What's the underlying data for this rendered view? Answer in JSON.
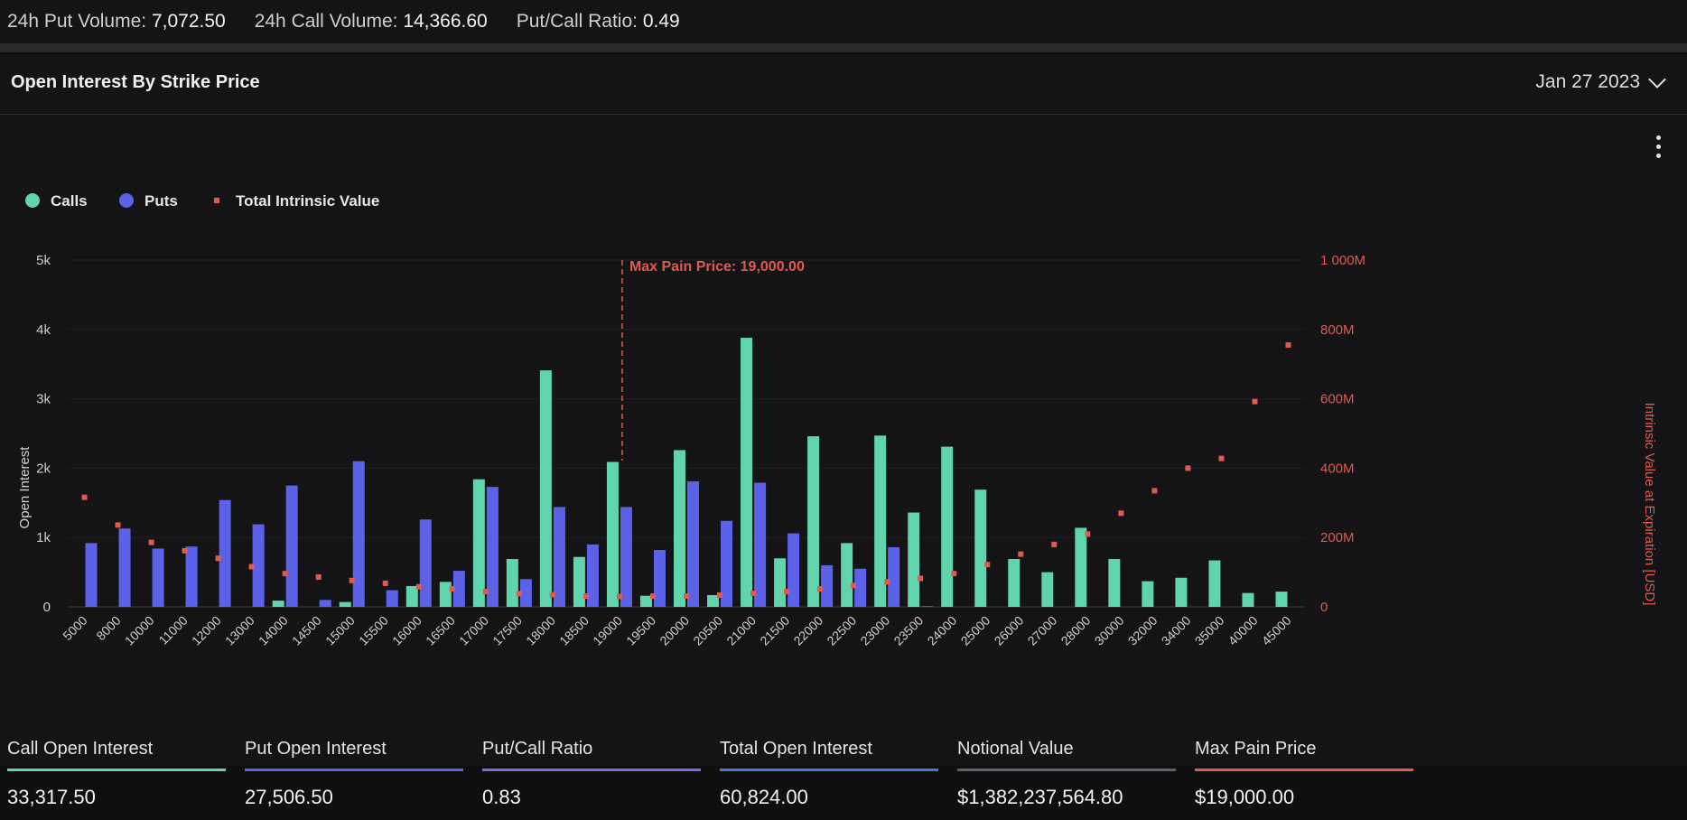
{
  "topbar": {
    "put_volume_label": "24h Put Volume:",
    "put_volume": "7,072.50",
    "call_volume_label": "24h Call Volume:",
    "call_volume": "14,366.60",
    "ratio_label": "Put/Call Ratio:",
    "ratio": "0.49"
  },
  "panel": {
    "title": "Open Interest By Strike Price",
    "date": "Jan 27 2023"
  },
  "legend": {
    "calls": "Calls",
    "puts": "Puts",
    "intrinsic": "Total Intrinsic Value"
  },
  "colors": {
    "calls": "#5fd4ad",
    "puts": "#5b62e8",
    "intrinsic": "#e05a4f",
    "bg": "#141416"
  },
  "chart_data": {
    "type": "bar",
    "categories": [
      "5000",
      "8000",
      "10000",
      "11000",
      "12000",
      "13000",
      "14000",
      "14500",
      "15000",
      "15500",
      "16000",
      "16500",
      "17000",
      "17500",
      "18000",
      "18500",
      "19000",
      "19500",
      "20000",
      "20500",
      "21000",
      "21500",
      "22000",
      "22500",
      "23000",
      "23500",
      "24000",
      "25000",
      "26000",
      "27000",
      "28000",
      "30000",
      "32000",
      "34000",
      "35000",
      "40000",
      "45000"
    ],
    "series": [
      {
        "name": "Calls",
        "axis": "left",
        "values": [
          0,
          0,
          0,
          0,
          0,
          0,
          90,
          0,
          70,
          0,
          300,
          360,
          1840,
          690,
          3410,
          720,
          2090,
          160,
          2260,
          170,
          3880,
          700,
          2460,
          920,
          2470,
          1360,
          2310,
          1690,
          690,
          500,
          1140,
          690,
          370,
          420,
          670,
          200,
          220
        ]
      },
      {
        "name": "Puts",
        "axis": "left",
        "values": [
          920,
          1130,
          840,
          870,
          1540,
          1190,
          1750,
          100,
          2100,
          240,
          1260,
          520,
          1730,
          400,
          1440,
          900,
          1440,
          820,
          1810,
          1240,
          1790,
          1060,
          600,
          550,
          860,
          10,
          0,
          0,
          0,
          0,
          0,
          0,
          0,
          0,
          0,
          0,
          0
        ]
      },
      {
        "name": "Total Intrinsic Value",
        "axis": "right",
        "type": "scatter",
        "values": [
          316,
          236,
          186,
          162,
          140,
          116,
          96,
          86,
          76,
          68,
          58,
          52,
          44,
          38,
          35,
          31,
          30,
          31,
          31,
          34,
          39,
          44,
          52,
          62,
          72,
          82,
          96,
          122,
          152,
          180,
          210,
          270,
          335,
          400,
          428,
          592,
          755
        ]
      }
    ],
    "yaxis_left": {
      "label": "Open Interest",
      "ticks": [
        "0",
        "1k",
        "2k",
        "3k",
        "4k",
        "5k"
      ],
      "ylim": [
        0,
        5000
      ]
    },
    "yaxis_right": {
      "label": "Intrinsic Value at Expiration [USD]",
      "ticks": [
        "0",
        "200M",
        "400M",
        "600M",
        "800M",
        "1 000M"
      ],
      "ylim": [
        0,
        1000
      ]
    },
    "max_pain": {
      "label": "Max Pain Price: 19,000.00",
      "category": "19000"
    },
    "legend_position": "top-left",
    "grid": true
  },
  "stats": [
    {
      "label": "Call Open Interest",
      "value": "33,317.50",
      "color": "#5fd4ad"
    },
    {
      "label": "Put Open Interest",
      "value": "27,506.50",
      "color": "#5b62e8"
    },
    {
      "label": "Put/Call Ratio",
      "value": "0.83",
      "color": "#7c6be0"
    },
    {
      "label": "Total Open Interest",
      "value": "60,824.00",
      "color": "#4a76d6"
    },
    {
      "label": "Notional Value",
      "value": "$1,382,237,564.80",
      "color": "#5a6374"
    },
    {
      "label": "Max Pain Price",
      "value": "$19,000.00",
      "color": "#e05a4f"
    }
  ]
}
